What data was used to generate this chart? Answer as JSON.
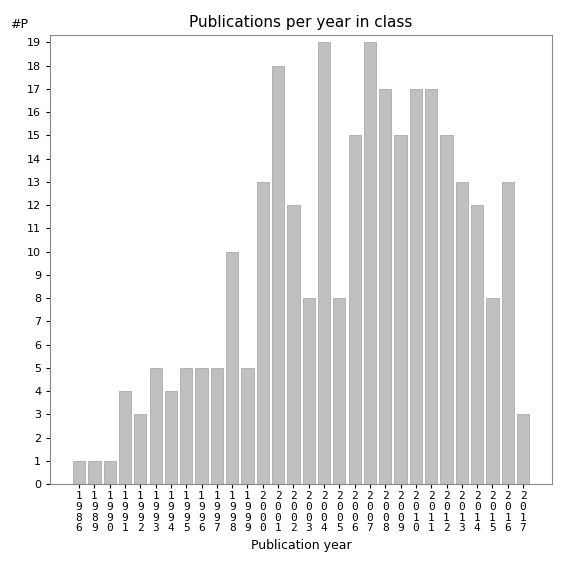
{
  "title": "Publications per year in class",
  "xlabel": "Publication year",
  "ylabel": "#P",
  "years": [
    "1986",
    "1989",
    "1990",
    "1991",
    "1992",
    "1993",
    "1994",
    "1995",
    "1996",
    "1997",
    "1998",
    "1999",
    "2000",
    "2001",
    "2002",
    "2003",
    "2004",
    "2005",
    "2006",
    "2007",
    "2008",
    "2009",
    "2010",
    "2011",
    "2012",
    "2013",
    "2014",
    "2015",
    "2016",
    "2017"
  ],
  "values": [
    1,
    1,
    1,
    4,
    3,
    5,
    4,
    5,
    5,
    5,
    10,
    5,
    13,
    18,
    12,
    8,
    19,
    8,
    15,
    19,
    17,
    15,
    17,
    17,
    15,
    13,
    12,
    8,
    13,
    3
  ],
  "bar_color": "#c0c0c0",
  "bar_edge_color": "#a0a0a0",
  "ylim_max": 19,
  "yticks": [
    0,
    1,
    2,
    3,
    4,
    5,
    6,
    7,
    8,
    9,
    10,
    11,
    12,
    13,
    14,
    15,
    16,
    17,
    18,
    19
  ],
  "title_fontsize": 11,
  "axis_label_fontsize": 9,
  "tick_fontsize": 8
}
